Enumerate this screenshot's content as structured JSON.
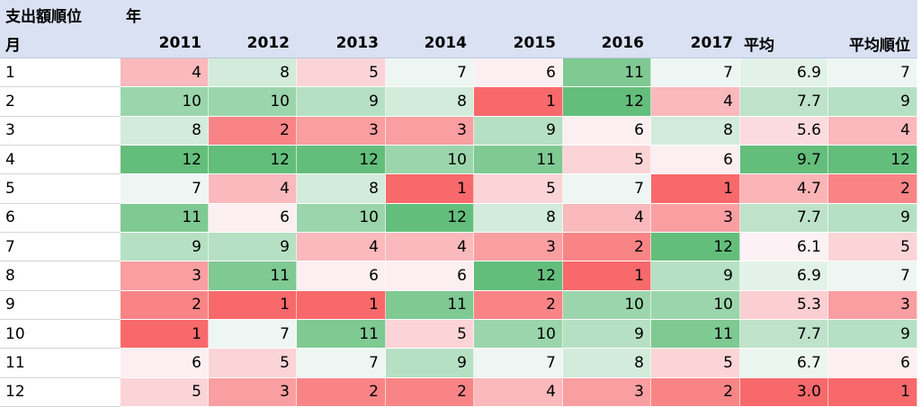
{
  "header": {
    "row1_col1": "支出額順位",
    "row1_col2": "年",
    "row2_col1": "月",
    "columns": [
      "2011",
      "2012",
      "2013",
      "2014",
      "2015",
      "2016",
      "2017",
      "平均",
      "平均順位"
    ]
  },
  "rows": [
    {
      "month": "1",
      "values": [
        "4",
        "8",
        "5",
        "7",
        "6",
        "11",
        "7",
        "6.9",
        "7"
      ]
    },
    {
      "month": "2",
      "values": [
        "10",
        "10",
        "9",
        "8",
        "1",
        "12",
        "4",
        "7.7",
        "9"
      ]
    },
    {
      "month": "3",
      "values": [
        "8",
        "2",
        "3",
        "3",
        "9",
        "6",
        "8",
        "5.6",
        "4"
      ]
    },
    {
      "month": "4",
      "values": [
        "12",
        "12",
        "12",
        "10",
        "11",
        "5",
        "6",
        "9.7",
        "12"
      ]
    },
    {
      "month": "5",
      "values": [
        "7",
        "4",
        "8",
        "1",
        "5",
        "7",
        "1",
        "4.7",
        "2"
      ]
    },
    {
      "month": "6",
      "values": [
        "11",
        "6",
        "10",
        "12",
        "8",
        "4",
        "3",
        "7.7",
        "9"
      ]
    },
    {
      "month": "7",
      "values": [
        "9",
        "9",
        "4",
        "4",
        "3",
        "2",
        "12",
        "6.1",
        "5"
      ]
    },
    {
      "month": "8",
      "values": [
        "3",
        "11",
        "6",
        "6",
        "12",
        "1",
        "9",
        "6.9",
        "7"
      ]
    },
    {
      "month": "9",
      "values": [
        "2",
        "1",
        "1",
        "11",
        "2",
        "10",
        "10",
        "5.3",
        "3"
      ]
    },
    {
      "month": "10",
      "values": [
        "1",
        "7",
        "11",
        "5",
        "10",
        "9",
        "11",
        "7.7",
        "9"
      ]
    },
    {
      "month": "11",
      "values": [
        "6",
        "5",
        "7",
        "9",
        "7",
        "8",
        "5",
        "6.7",
        "6"
      ]
    },
    {
      "month": "12",
      "values": [
        "5",
        "3",
        "2",
        "2",
        "4",
        "3",
        "2",
        "3.0",
        "1"
      ]
    }
  ],
  "colors": {
    "header_bg": "#d9e1f2",
    "scale_low": "#f8696b",
    "scale_mid": "#fcfcff",
    "scale_high": "#63be7b"
  }
}
